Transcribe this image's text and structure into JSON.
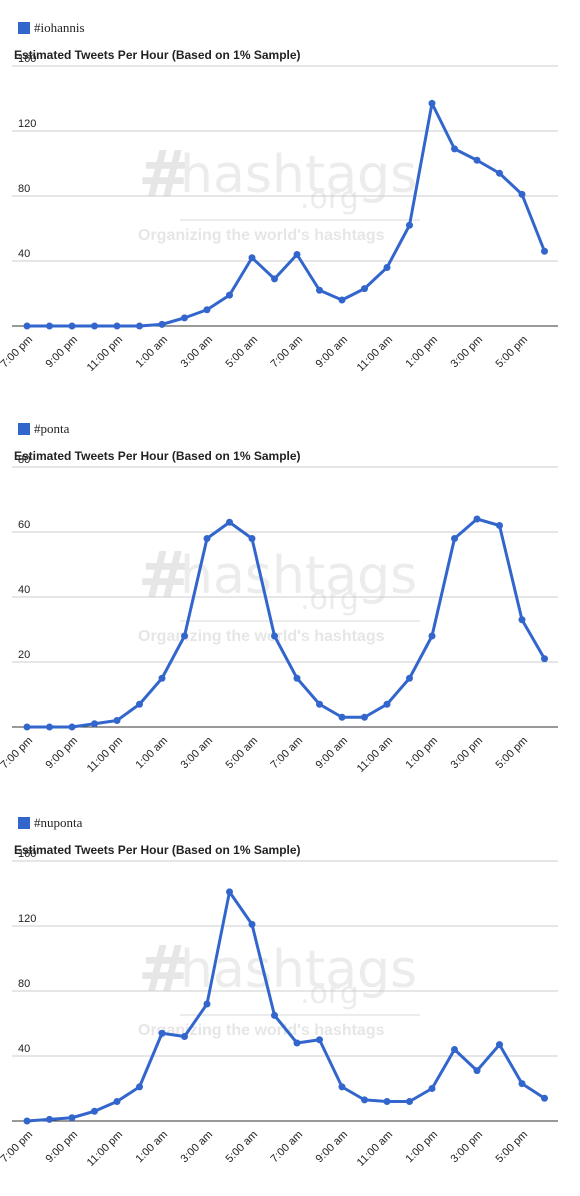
{
  "chart_data": [
    {
      "type": "line",
      "legend": "#iohannis",
      "title": "Estimated Tweets Per Hour (Based on 1% Sample)",
      "watermark": {
        "brand": "hashtags",
        "org": ".org",
        "tagline": "Organizing the world's hashtags"
      },
      "ylim": [
        0,
        160
      ],
      "yticks": [
        "160",
        "120",
        "80",
        "40"
      ],
      "ytick_values": [
        160,
        120,
        80,
        40
      ],
      "xtick_labels": [
        "7:00 pm",
        "9:00 pm",
        "11:00 pm",
        "1:00 am",
        "3:00 am",
        "5:00 am",
        "7:00 am",
        "9:00 am",
        "11:00 am",
        "1:00 pm",
        "3:00 pm",
        "5:00 pm"
      ],
      "color": "#3366cc",
      "values": [
        0,
        0,
        0,
        0,
        0,
        0,
        1,
        5,
        10,
        19,
        42,
        29,
        44,
        22,
        16,
        23,
        36,
        62,
        137,
        109,
        102,
        94,
        81,
        46
      ]
    },
    {
      "type": "line",
      "legend": "#ponta",
      "title": "Estimated Tweets Per Hour (Based on 1% Sample)",
      "watermark": {
        "brand": "hashtags",
        "org": ".org",
        "tagline": "Organizing the world's hashtags"
      },
      "ylim": [
        0,
        80
      ],
      "yticks": [
        "80",
        "60",
        "40",
        "20"
      ],
      "ytick_values": [
        80,
        60,
        40,
        20
      ],
      "xtick_labels": [
        "7:00 pm",
        "9:00 pm",
        "11:00 pm",
        "1:00 am",
        "3:00 am",
        "5:00 am",
        "7:00 am",
        "9:00 am",
        "11:00 am",
        "1:00 pm",
        "3:00 pm",
        "5:00 pm"
      ],
      "color": "#3366cc",
      "values": [
        0,
        0,
        0,
        1,
        2,
        7,
        15,
        28,
        58,
        63,
        58,
        28,
        15,
        7,
        3,
        3,
        7,
        15,
        28,
        58,
        64,
        62,
        33,
        21
      ]
    },
    {
      "type": "line",
      "legend": "#nuponta",
      "title": "Estimated Tweets Per Hour (Based on 1% Sample)",
      "watermark": {
        "brand": "hashtags",
        "org": ".org",
        "tagline": "Organizing the world's hashtags"
      },
      "ylim": [
        0,
        160
      ],
      "yticks": [
        "160",
        "120",
        "80",
        "40"
      ],
      "ytick_values": [
        160,
        120,
        80,
        40
      ],
      "xtick_labels": [
        "7:00 pm",
        "9:00 pm",
        "11:00 pm",
        "1:00 am",
        "3:00 am",
        "5:00 am",
        "7:00 am",
        "9:00 am",
        "11:00 am",
        "1:00 pm",
        "3:00 pm",
        "5:00 pm"
      ],
      "color": "#3366cc",
      "values": [
        0,
        1,
        2,
        6,
        12,
        21,
        54,
        52,
        72,
        141,
        121,
        65,
        48,
        50,
        21,
        13,
        12,
        12,
        20,
        44,
        31,
        47,
        23,
        14
      ]
    }
  ]
}
